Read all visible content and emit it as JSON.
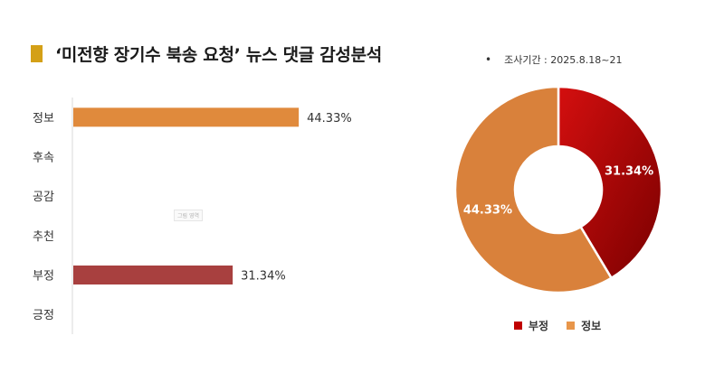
{
  "header": {
    "title": "‘미전향 장기수 북송 요청’ 뉴스 댓글 감성분석",
    "survey_period": "조사기간 : 2025.8.18~21",
    "bullet": "•"
  },
  "watermark_text": "그림 영역",
  "colors": {
    "title_marker": "#d4a017",
    "info": "#e08a3c",
    "negative_bar": "#a8403f",
    "negative_pie_light": "#d40f0f",
    "negative_pie_dark": "#7a0000",
    "info_pie": "#d9813b"
  },
  "chart_data": [
    {
      "type": "bar",
      "orientation": "horizontal",
      "categories": [
        "정보",
        "후속",
        "공감",
        "추천",
        "부정",
        "긍정"
      ],
      "values": [
        44.33,
        null,
        null,
        null,
        31.34,
        null
      ],
      "value_labels": [
        "44.33%",
        "",
        "",
        "",
        "31.34%",
        ""
      ],
      "bar_colors": [
        "#e08a3c",
        null,
        null,
        null,
        "#a8403f",
        null
      ],
      "xlim": [
        0,
        100
      ]
    },
    {
      "type": "pie",
      "donut": true,
      "labels": [
        "부정",
        "정보"
      ],
      "values": [
        31.34,
        44.33
      ],
      "value_labels": [
        "31.34%",
        "44.33%"
      ],
      "colors": [
        "#b30000",
        "#d9813b"
      ],
      "legend": [
        "부정",
        "정보"
      ],
      "legend_position": "bottom"
    }
  ],
  "legend_items": [
    {
      "label": "부정",
      "color": "#c00000"
    },
    {
      "label": "정보",
      "color": "#e8964a"
    }
  ]
}
